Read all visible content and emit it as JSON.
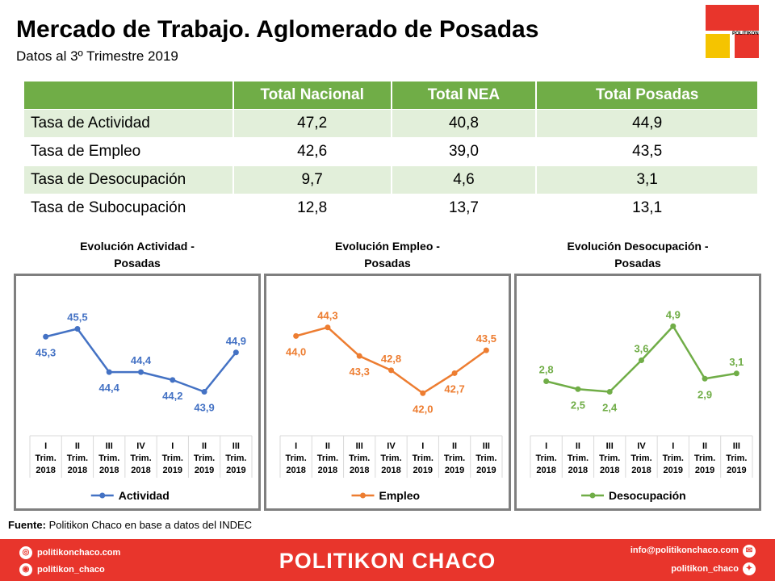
{
  "header": {
    "title": "Mercado de Trabajo. Aglomerado de Posadas",
    "subtitle": "Datos al 3º Trimestre 2019",
    "logo_text": "POLITIKON"
  },
  "table": {
    "columns": [
      "",
      "Total Nacional",
      "Total NEA",
      "Total Posadas"
    ],
    "rows": [
      [
        "Tasa de Actividad",
        "47,2",
        "40,8",
        "44,9"
      ],
      [
        "Tasa de Empleo",
        "42,6",
        "39,0",
        "43,5"
      ],
      [
        "Tasa de Desocupación",
        "9,7",
        "4,6",
        "3,1"
      ],
      [
        "Tasa de Subocupación",
        "12,8",
        "13,7",
        "13,1"
      ]
    ]
  },
  "chart_data": [
    {
      "type": "line",
      "title": "Evolución Actividad - Posadas",
      "title_lines": [
        "Evolución  Actividad  -",
        "Posadas"
      ],
      "categories": [
        [
          "I",
          "Trim.",
          "2018"
        ],
        [
          "II",
          "Trim.",
          "2018"
        ],
        [
          "III",
          "Trim.",
          "2018"
        ],
        [
          "IV",
          "Trim.",
          "2018"
        ],
        [
          "I",
          "Trim.",
          "2019"
        ],
        [
          "II",
          "Trim.",
          "2019"
        ],
        [
          "III",
          "Trim.",
          "2019"
        ]
      ],
      "series": [
        {
          "name": "Actividad",
          "values": [
            45.3,
            45.5,
            44.4,
            44.4,
            44.2,
            43.9,
            44.9
          ]
        }
      ],
      "labels": [
        "45,3",
        "45,5",
        "44,4",
        "44,4",
        "44,2",
        "43,9",
        "44,9"
      ],
      "label_pos": [
        "below",
        "above",
        "below",
        "above",
        "below",
        "below",
        "above"
      ],
      "ylim": [
        43.5,
        45.9
      ],
      "color": "#4472c4"
    },
    {
      "type": "line",
      "title": "Evolución Empleo - Posadas",
      "title_lines": [
        "Evolución  Empleo  -",
        "Posadas"
      ],
      "categories": [
        [
          "I",
          "Trim.",
          "2018"
        ],
        [
          "II",
          "Trim.",
          "2018"
        ],
        [
          "III",
          "Trim.",
          "2018"
        ],
        [
          "IV",
          "Trim.",
          "2018"
        ],
        [
          "I",
          "Trim.",
          "2019"
        ],
        [
          "II",
          "Trim.",
          "2019"
        ],
        [
          "III",
          "Trim.",
          "2019"
        ]
      ],
      "series": [
        {
          "name": "Empleo",
          "values": [
            44.0,
            44.3,
            43.3,
            42.8,
            42.0,
            42.7,
            43.5
          ]
        }
      ],
      "labels": [
        "44,0",
        "44,3",
        "43,3",
        "42,8",
        "42,0",
        "42,7",
        "43,5"
      ],
      "label_pos": [
        "below",
        "above",
        "below",
        "above",
        "below",
        "below",
        "above"
      ],
      "ylim": [
        41.5,
        44.8
      ],
      "color": "#ed7d31"
    },
    {
      "type": "line",
      "title": "Evolución Desocupación - Posadas",
      "title_lines": [
        "Evolución  Desocupación  -",
        "Posadas"
      ],
      "categories": [
        [
          "I",
          "Trim.",
          "2018"
        ],
        [
          "II",
          "Trim.",
          "2018"
        ],
        [
          "III",
          "Trim.",
          "2018"
        ],
        [
          "IV",
          "Trim.",
          "2018"
        ],
        [
          "I",
          "Trim.",
          "2019"
        ],
        [
          "II",
          "Trim.",
          "2019"
        ],
        [
          "III",
          "Trim.",
          "2019"
        ]
      ],
      "series": [
        {
          "name": "Desocupación",
          "values": [
            2.8,
            2.5,
            2.4,
            3.6,
            4.9,
            2.9,
            3.1
          ]
        }
      ],
      "labels": [
        "2,8",
        "2,5",
        "2,4",
        "3,6",
        "4,9",
        "2,9",
        "3,1"
      ],
      "label_pos": [
        "above",
        "below",
        "below",
        "above",
        "above",
        "below",
        "above"
      ],
      "ylim": [
        1.8,
        5.4
      ],
      "color": "#70ad47"
    }
  ],
  "source": {
    "label": "Fuente:",
    "text": " Politikon Chaco en base a datos del INDEC"
  },
  "footer": {
    "brand": "POLITIKON CHACO",
    "web": "politikonchaco.com",
    "instagram": "politikon_chaco",
    "email": "info@politikonchaco.com",
    "twitter": "politikon_chaco",
    "web_icon": "globe-icon",
    "instagram_icon": "instagram-icon",
    "email_icon": "mail-icon",
    "twitter_icon": "twitter-icon"
  }
}
